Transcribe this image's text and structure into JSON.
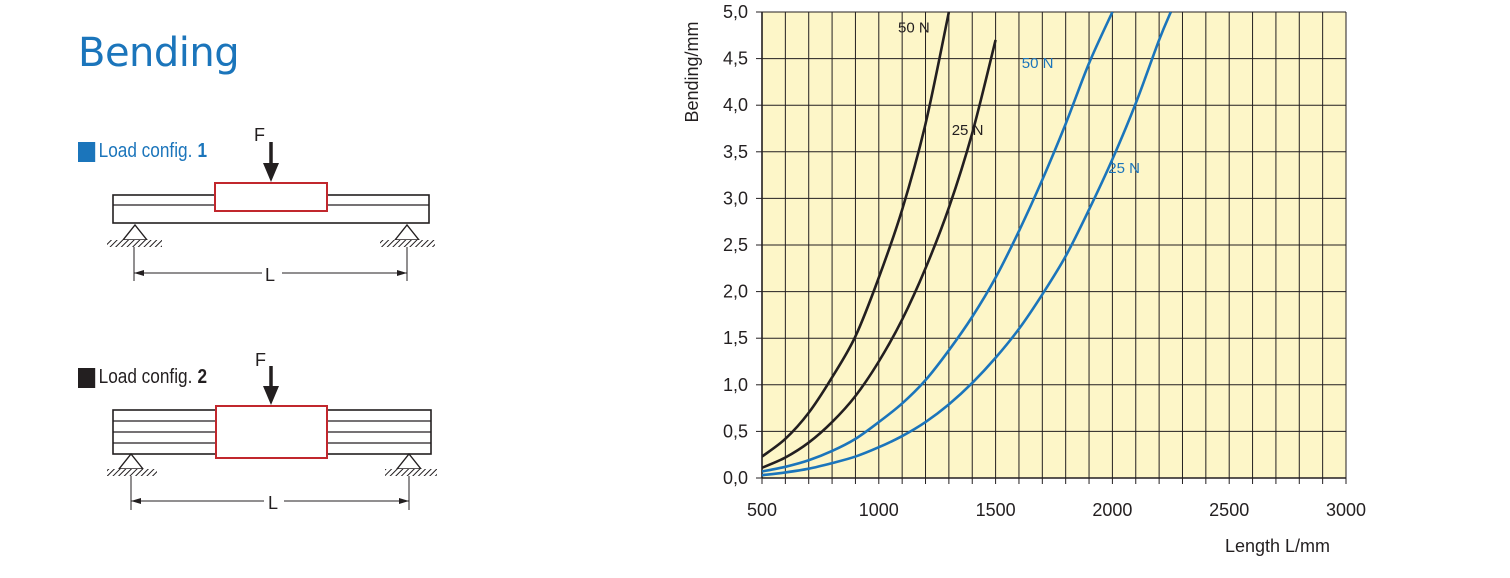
{
  "page": {
    "title": "Bending",
    "load_configs": [
      {
        "label": "Load config.",
        "number": "1",
        "color": "#1b75bb"
      },
      {
        "label": "Load config.",
        "number": "2",
        "color": "#231f20"
      }
    ],
    "diagram": {
      "force_label": "F",
      "length_label": "L"
    }
  },
  "chart_data": {
    "type": "line",
    "xlabel": "Length L/mm",
    "ylabel": "Bending/mm",
    "xlim": [
      500,
      3000
    ],
    "ylim": [
      0,
      5
    ],
    "x_ticks": [
      "500",
      "1000",
      "1500",
      "2000",
      "2500",
      "3000"
    ],
    "y_ticks": [
      "0,0",
      "0,5",
      "1,0",
      "1,5",
      "2,0",
      "2,5",
      "3,0",
      "3,5",
      "4,0",
      "4,5",
      "5,0"
    ],
    "grid": true,
    "background": "#fdf6c8",
    "series": [
      {
        "name": "50 N",
        "config": "2",
        "color": "#231f20",
        "x": [
          500,
          600,
          700,
          800,
          900,
          1000,
          1100,
          1200,
          1300
        ],
        "y": [
          0.23,
          0.42,
          0.7,
          1.08,
          1.52,
          2.15,
          2.88,
          3.8,
          5.0
        ]
      },
      {
        "name": "25 N",
        "config": "2",
        "color": "#231f20",
        "x": [
          500,
          600,
          700,
          800,
          900,
          1000,
          1100,
          1200,
          1300,
          1400,
          1500
        ],
        "y": [
          0.11,
          0.22,
          0.38,
          0.6,
          0.88,
          1.25,
          1.7,
          2.25,
          2.9,
          3.7,
          4.7
        ]
      },
      {
        "name": "50 N",
        "config": "1",
        "color": "#1b75bb",
        "x": [
          500,
          600,
          700,
          800,
          900,
          1000,
          1100,
          1200,
          1300,
          1400,
          1500,
          1600,
          1700,
          1800,
          1900,
          2000
        ],
        "y": [
          0.07,
          0.12,
          0.19,
          0.29,
          0.42,
          0.6,
          0.8,
          1.05,
          1.37,
          1.73,
          2.15,
          2.65,
          3.2,
          3.8,
          4.45,
          5.0
        ]
      },
      {
        "name": "25 N",
        "config": "1",
        "color": "#1b75bb",
        "x": [
          500,
          600,
          700,
          800,
          900,
          1000,
          1100,
          1200,
          1300,
          1400,
          1500,
          1600,
          1700,
          1800,
          1900,
          2000,
          2100,
          2200,
          2250
        ],
        "y": [
          0.03,
          0.06,
          0.1,
          0.16,
          0.23,
          0.33,
          0.45,
          0.6,
          0.79,
          1.02,
          1.29,
          1.6,
          1.97,
          2.38,
          2.88,
          3.42,
          4.02,
          4.7,
          5.0
        ]
      }
    ],
    "annotations": [
      {
        "text": "50 N",
        "x": 1150,
        "y": 4.78,
        "color": "#231f20"
      },
      {
        "text": "25 N",
        "x": 1380,
        "y": 3.68,
        "color": "#231f20"
      },
      {
        "text": "50 N",
        "x": 1680,
        "y": 4.4,
        "color": "#1b75bb"
      },
      {
        "text": "25 N",
        "x": 2050,
        "y": 3.27,
        "color": "#1b75bb"
      }
    ]
  }
}
